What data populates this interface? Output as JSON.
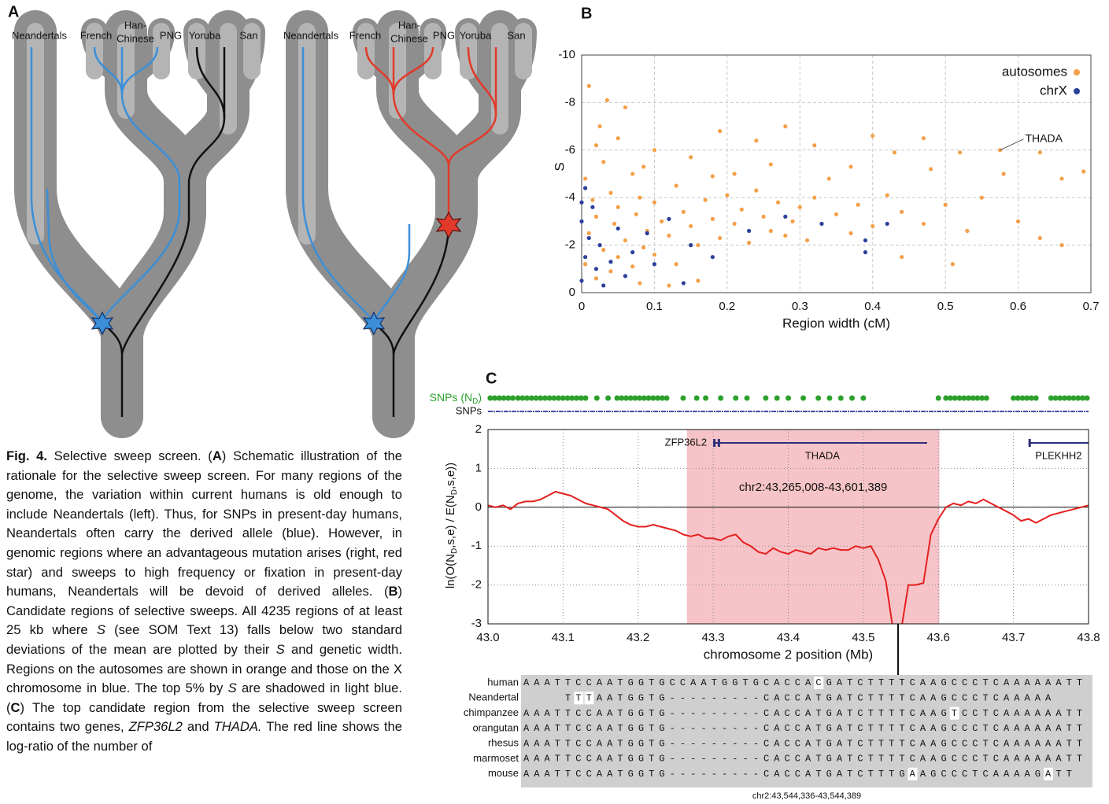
{
  "panel_labels": [
    "A",
    "B",
    "C"
  ],
  "panel_a": {
    "populations": [
      "Neandertals",
      "French",
      "Han-",
      "Chinese",
      "PNG",
      "Yoruba",
      "San"
    ]
  },
  "caption": [
    "Fig. 4.",
    " Selective sweep screen. (",
    "A",
    ") Schematic illustration of the rationale for the selective sweep screen. For many regions of the genome, the variation within current humans is old enough to include Neandertals (left). Thus, for SNPs in present-day humans, Neandertals often carry the derived allele (blue). However, in genomic regions where an advantageous mutation arises (right, red star) and sweeps to high frequency or fixation in present-day humans, Neandertals will be devoid of derived alleles. (",
    "B",
    ") Candidate regions of selective sweeps. All 4235 regions of at least 25 kb where ",
    "S",
    " (see SOM Text 13) falls below two standard deviations of the mean are plotted by their ",
    "S",
    " and genetic width. Regions on the autosomes are shown in orange and those on the X chromosome in blue. The top 5% by ",
    "S",
    " are shadowed in light blue. (",
    "C",
    ") The top candidate region from the selective sweep screen contains two genes, ",
    "ZFP36L2",
    " and ",
    "THADA.",
    " The red line shows the log-ratio of the number of"
  ],
  "chart_data": [
    {
      "type": "scatter",
      "ylabel": "S",
      "xlabel": "Region width (cM)",
      "xlim": [
        0,
        0.7
      ],
      "ylim": [
        0,
        -10
      ],
      "xticks": [
        0,
        0.1,
        0.2,
        0.3,
        0.4,
        0.5,
        0.6,
        0.7
      ],
      "yticks": [
        0,
        -2,
        -4,
        -6,
        -8,
        -10
      ],
      "grid": true,
      "shaded_band": [
        -10,
        -4.45
      ],
      "shade_color": "#c8e8f6",
      "legend": "upper right",
      "annotations": [
        {
          "text": "THADA",
          "x": 0.575,
          "y": -6.0
        }
      ],
      "series": [
        {
          "name": "autosomes",
          "color": "#f4a049",
          "x": [
            0.01,
            0.02,
            0.03,
            0.005,
            0.015,
            0.02,
            0.01,
            0.03,
            0.005,
            0.02,
            0.04,
            0.05,
            0.045,
            0.06,
            0.05,
            0.04,
            0.07,
            0.08,
            0.075,
            0.09,
            0.085,
            0.07,
            0.1,
            0.11,
            0.12,
            0.1,
            0.13,
            0.14,
            0.15,
            0.16,
            0.13,
            0.17,
            0.18,
            0.19,
            0.2,
            0.21,
            0.22,
            0.23,
            0.24,
            0.25,
            0.26,
            0.27,
            0.28,
            0.29,
            0.3,
            0.31,
            0.32,
            0.33,
            0.35,
            0.37,
            0.38,
            0.4,
            0.42,
            0.44,
            0.47,
            0.5,
            0.53,
            0.55,
            0.6,
            0.63,
            0.66,
            0.51,
            0.44,
            0.16,
            0.12,
            0.08,
            0.05,
            0.1,
            0.15,
            0.19,
            0.24,
            0.28,
            0.32,
            0.37,
            0.4,
            0.43,
            0.48,
            0.52,
            0.47,
            0.58,
            0.63,
            0.66,
            0.69,
            0.575,
            0.21,
            0.34,
            0.085,
            0.025,
            0.06,
            0.035,
            0.18,
            0.26
          ],
          "values": [
            -8.7,
            -6.2,
            -5.5,
            -4.8,
            -3.9,
            -3.2,
            -2.5,
            -1.8,
            -1.2,
            -0.6,
            -4.2,
            -3.6,
            -2.9,
            -2.2,
            -1.5,
            -0.9,
            -5.0,
            -4.0,
            -3.3,
            -2.6,
            -1.9,
            -1.1,
            -3.8,
            -3.0,
            -2.4,
            -1.6,
            -4.5,
            -3.4,
            -2.8,
            -2.0,
            -1.2,
            -3.9,
            -3.1,
            -2.3,
            -4.1,
            -2.9,
            -3.5,
            -2.1,
            -4.3,
            -3.2,
            -2.6,
            -3.8,
            -2.4,
            -3.0,
            -3.6,
            -2.2,
            -4.0,
            -2.9,
            -3.3,
            -2.5,
            -3.7,
            -2.8,
            -4.1,
            -3.4,
            -2.9,
            -3.7,
            -2.6,
            -4.0,
            -3.0,
            -2.3,
            -2.0,
            -1.2,
            -1.5,
            -0.5,
            -0.3,
            -0.4,
            -6.5,
            -6.0,
            -5.7,
            -6.8,
            -6.4,
            -7.0,
            -6.2,
            -5.3,
            -6.6,
            -5.9,
            -5.2,
            -5.9,
            -6.5,
            -5.0,
            -5.9,
            -4.8,
            -5.1,
            -6.0,
            -5.0,
            -4.8,
            -5.3,
            -7.0,
            -7.8,
            -8.1,
            -4.9,
            -5.4
          ]
        },
        {
          "name": "chrX",
          "color": "#2b3f9c",
          "x": [
            0.0,
            0.005,
            0.01,
            0.0,
            0.02,
            0.015,
            0.03,
            0.025,
            0.04,
            0.05,
            0.06,
            0.07,
            0.09,
            0.1,
            0.12,
            0.15,
            0.18,
            0.23,
            0.28,
            0.33,
            0.39,
            0.39,
            0.42,
            0.14,
            0.005,
            0.0
          ],
          "values": [
            -0.5,
            -1.5,
            -2.3,
            -3.0,
            -1.0,
            -3.6,
            -0.3,
            -2.0,
            -1.3,
            -2.7,
            -0.7,
            -1.7,
            -2.5,
            -1.2,
            -3.1,
            -2.0,
            -1.5,
            -2.6,
            -3.2,
            -2.9,
            -1.7,
            -2.2,
            -2.9,
            -0.4,
            -4.4,
            -3.8
          ]
        }
      ]
    },
    {
      "type": "line",
      "ylabel": [
        "ln(O(N",
        "D",
        ",s,e) / E(N",
        "D",
        ",s,e))"
      ],
      "xlabel": "chromosome 2 position (Mb)",
      "xlim": [
        43,
        43.8
      ],
      "ylim": [
        -3,
        2
      ],
      "xticks": [
        {
          "value": 43,
          "label": "43.0"
        },
        43.1,
        43.2,
        43.3,
        43.4,
        43.5,
        43.6,
        43.7,
        43.8
      ],
      "yticks": [
        -3,
        -2,
        -1,
        0,
        1,
        2
      ],
      "grid": true,
      "highlight": {
        "start": 43.265008,
        "end": 43.601389,
        "label": "chr2:43,265,008-43,601,389",
        "color": "#f6c4c8"
      },
      "genes": [
        {
          "name": "ZFP36L2",
          "start": 43.3,
          "end": 43.306
        },
        {
          "name": "THADA",
          "start": 43.306,
          "end": 43.585
        },
        {
          "name": "PLEKHH2",
          "start": 43.72,
          "end": 43.8
        }
      ],
      "gene_color": "#2b2f7a",
      "snps_nd_label": [
        "SNPs (N",
        "D",
        ")"
      ],
      "snps_nd_color": "#2ca02c",
      "snps_nd": [
        43.003,
        43.009,
        43.015,
        43.021,
        43.027,
        43.033,
        43.04,
        43.046,
        43.052,
        43.058,
        43.064,
        43.07,
        43.076,
        43.082,
        43.088,
        43.094,
        43.1,
        43.106,
        43.112,
        43.118,
        43.124,
        43.13,
        43.145,
        43.16,
        43.172,
        43.178,
        43.184,
        43.19,
        43.196,
        43.202,
        43.208,
        43.214,
        43.22,
        43.226,
        43.232,
        43.238,
        43.26,
        43.278,
        43.29,
        43.31,
        43.33,
        43.345,
        43.37,
        43.385,
        43.4,
        43.42,
        43.44,
        43.455,
        43.47,
        43.485,
        43.5,
        43.6,
        43.61,
        43.616,
        43.622,
        43.628,
        43.634,
        43.64,
        43.646,
        43.652,
        43.658,
        43.664,
        43.7,
        43.706,
        43.712,
        43.718,
        43.724,
        43.73,
        43.75,
        43.756,
        43.762,
        43.768,
        43.774,
        43.78,
        43.786,
        43.792,
        43.798
      ],
      "snps_label": "SNPs",
      "snps_color": "#3b4fa0",
      "series": [
        {
          "color": "#e4201f",
          "x": [
            43.0,
            43.01,
            43.02,
            43.03,
            43.04,
            43.05,
            43.06,
            43.07,
            43.08,
            43.09,
            43.1,
            43.11,
            43.12,
            43.13,
            43.14,
            43.15,
            43.16,
            43.17,
            43.18,
            43.19,
            43.2,
            43.21,
            43.22,
            43.23,
            43.24,
            43.25,
            43.26,
            43.27,
            43.28,
            43.29,
            43.3,
            43.31,
            43.32,
            43.33,
            43.34,
            43.35,
            43.36,
            43.37,
            43.38,
            43.39,
            43.4,
            43.41,
            43.42,
            43.43,
            43.44,
            43.45,
            43.46,
            43.47,
            43.48,
            43.49,
            43.5,
            43.51,
            43.52,
            43.53,
            43.54,
            43.55,
            43.56,
            43.57,
            43.58,
            43.59,
            43.6,
            43.61,
            43.62,
            43.63,
            43.64,
            43.65,
            43.66,
            43.67,
            43.68,
            43.69,
            43.7,
            43.71,
            43.72,
            43.73,
            43.74,
            43.75,
            43.76,
            43.77,
            43.78,
            43.79,
            43.8
          ],
          "values": [
            0.05,
            0.0,
            0.05,
            -0.05,
            0.1,
            0.15,
            0.15,
            0.2,
            0.3,
            0.4,
            0.35,
            0.3,
            0.2,
            0.1,
            0.05,
            0.0,
            -0.05,
            -0.2,
            -0.35,
            -0.45,
            -0.5,
            -0.5,
            -0.45,
            -0.5,
            -0.55,
            -0.6,
            -0.7,
            -0.75,
            -0.7,
            -0.8,
            -0.8,
            -0.85,
            -0.75,
            -0.7,
            -0.9,
            -1.0,
            -1.15,
            -1.2,
            -1.05,
            -1.15,
            -1.2,
            -1.1,
            -1.15,
            -1.2,
            -1.05,
            -1.1,
            -1.05,
            -1.1,
            -1.1,
            -1.0,
            -1.05,
            -1.0,
            -1.35,
            -1.9,
            -3.2,
            -3.2,
            -2.0,
            -2.0,
            -1.95,
            -0.7,
            -0.3,
            0.0,
            0.1,
            0.05,
            0.15,
            0.1,
            0.2,
            0.1,
            0.0,
            -0.1,
            -0.2,
            -0.35,
            -0.3,
            -0.4,
            -0.3,
            -0.2,
            -0.15,
            -0.1,
            -0.05,
            0.0,
            0.05
          ]
        }
      ]
    }
  ],
  "alignment": {
    "rows": [
      {
        "species": "human",
        "sequence": "AAATTCCAATGGTGCCAATGGTGCACCACGATCTTTTCAAGCCCTCAAAAAATT",
        "highlights": [
          28
        ]
      },
      {
        "species": "Neandertal",
        "sequence": "    TTTAATGGTG---------CACCATGATCTTTTCAAGCCCTCAAAAA",
        "highlights": [
          5,
          6
        ]
      },
      {
        "species": "chimpanzee",
        "sequence": "AAATTCCAATGGTG---------CACCATGATCTTTTCAAGTCCTCAAAAAATT",
        "highlights": [
          41
        ]
      },
      {
        "species": "orangutan",
        "sequence": "AAATTCCAATGGTG---------CACCATGATCTTTTCAAGCCCTCAAAAAATT",
        "highlights": []
      },
      {
        "species": "rhesus",
        "sequence": "AAATTCCAATGGTG---------CACCATGATCTTTTCAAGCCCTCAAAAAATT",
        "highlights": []
      },
      {
        "species": "marmoset",
        "sequence": "AAATTCCAATGGTG---------CACCATGATCTTTTCAAGCCCTCAAAAAATT",
        "highlights": []
      },
      {
        "species": "mouse",
        "sequence": "AAATTCCAATGGTG---------CACCATGATCTTTGAAGCCCTCAAAAGATT",
        "highlights": [
          37,
          50
        ]
      }
    ],
    "region": "chr2:43,544,336-43,544,389"
  }
}
